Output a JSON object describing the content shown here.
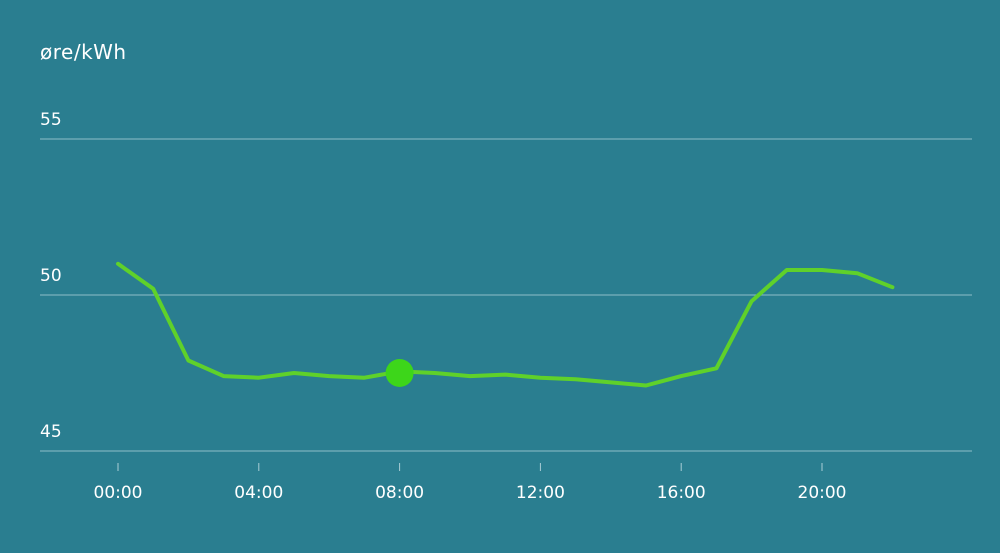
{
  "colors": {
    "background": "#2a7e90",
    "line": "#5fd12a",
    "marker": "#3dd61a",
    "grid": "#a9cdd6",
    "text": "#ffffff"
  },
  "chart_data": {
    "type": "line",
    "title": "",
    "ylabel": "øre/kWh",
    "xlabel": "",
    "ylim": [
      45,
      55
    ],
    "yticks": [
      "55",
      "50",
      "45"
    ],
    "ytick_values": [
      55,
      50,
      45
    ],
    "xtick_labels": [
      "00:00",
      "04:00",
      "08:00",
      "12:00",
      "16:00",
      "20:00"
    ],
    "xtick_hours": [
      0,
      4,
      8,
      12,
      16,
      20
    ],
    "grid": true,
    "series": [
      {
        "x": [
          0,
          1,
          2,
          3,
          4,
          5,
          6,
          7,
          8,
          9,
          10,
          11,
          12,
          13,
          14,
          15,
          16,
          17,
          18,
          19,
          20,
          21,
          22
        ],
        "values": [
          51.0,
          50.2,
          47.9,
          47.4,
          47.35,
          47.5,
          47.4,
          47.35,
          47.55,
          47.5,
          47.4,
          47.45,
          47.35,
          47.3,
          47.2,
          47.1,
          47.4,
          47.65,
          49.8,
          50.8,
          50.8,
          50.7,
          50.25
        ]
      }
    ],
    "highlight": {
      "x": 8,
      "value": 47.5
    }
  }
}
